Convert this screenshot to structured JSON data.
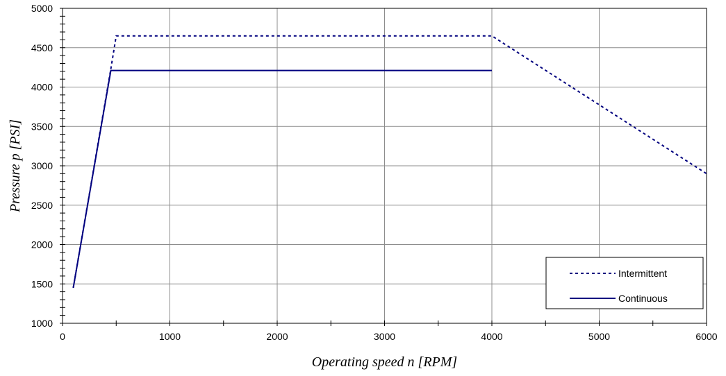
{
  "chart_data": {
    "type": "line",
    "xlabel": "Operating speed n [RPM]",
    "ylabel": "Pressure p [PSI]",
    "xlim": [
      0,
      6000
    ],
    "ylim": [
      1000,
      5000
    ],
    "x_ticks": [
      0,
      1000,
      2000,
      3000,
      4000,
      5000,
      6000
    ],
    "y_ticks": [
      1000,
      1500,
      2000,
      2500,
      3000,
      3500,
      4000,
      4500,
      5000
    ],
    "grid": true,
    "legend_position": "bottom-right",
    "series": [
      {
        "name": "Intermittent",
        "style": "dotted",
        "color": "#00007f",
        "x": [
          100,
          450,
          500,
          4000,
          6000
        ],
        "y": [
          1450,
          4230,
          4650,
          4650,
          2900
        ]
      },
      {
        "name": "Continuous",
        "style": "solid",
        "color": "#00007f",
        "x": [
          100,
          450,
          4000
        ],
        "y": [
          1450,
          4210,
          4210
        ]
      }
    ]
  }
}
